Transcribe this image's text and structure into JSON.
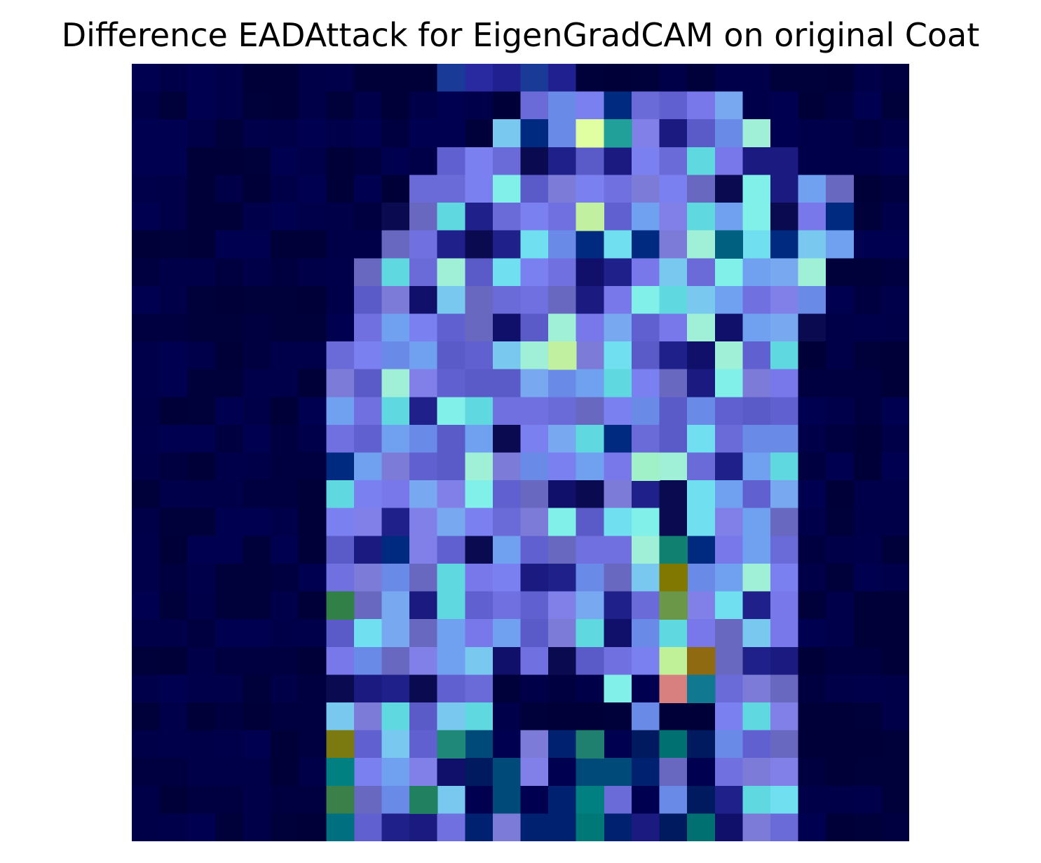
{
  "figure": {
    "title": "Difference EADAttack for EigenGradCAM on original Coat"
  },
  "heatmap": {
    "grid": [
      28,
      28
    ],
    "background_color": "#00003a",
    "palette": {
      "dark": "#000040",
      "blue": "#2a2a9a",
      "violet": "#7070e0",
      "light_blue": "#78a8f0",
      "cyan": "#70e0f0",
      "lime": "#c0f098",
      "olive": "#7a7a10",
      "teal": "#10807a",
      "salmon": "#d88080"
    }
  }
}
